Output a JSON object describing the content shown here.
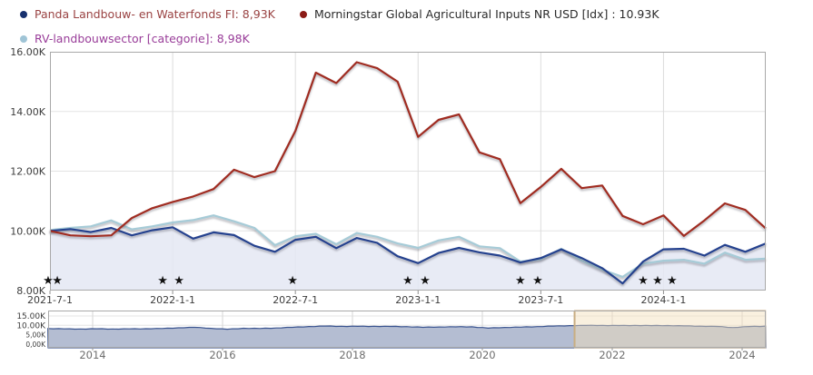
{
  "page": {
    "background": "#ffffff"
  },
  "legend": {
    "items": [
      {
        "id": "panda-fund",
        "label": "Panda Landbouw- en Waterfonds FI: 8,93K",
        "bullet_color": "#16306e",
        "text_color": "#9a4343"
      },
      {
        "id": "morningstar-index",
        "label": "Morningstar Global Agricultural Inputs NR USD [Idx] : 10.93K",
        "bullet_color": "#8b1a15",
        "text_color": "#2b2b2b"
      },
      {
        "id": "category",
        "label": "RV-landbouwsector [categorie]: 8,98K",
        "bullet_color": "#9fc4d6",
        "text_color": "#993d99"
      }
    ]
  },
  "chart_data": [
    {
      "type": "line",
      "title": "",
      "xlabel": "",
      "ylabel": "",
      "ylim": [
        8,
        16
      ],
      "grid": true,
      "legend_position": "top",
      "x": [
        "2021-07",
        "2021-08",
        "2021-09",
        "2021-10",
        "2021-11",
        "2021-12",
        "2022-01",
        "2022-02",
        "2022-03",
        "2022-04",
        "2022-05",
        "2022-06",
        "2022-07",
        "2022-08",
        "2022-09",
        "2022-10",
        "2022-11",
        "2022-12",
        "2023-01",
        "2023-02",
        "2023-03",
        "2023-04",
        "2023-05",
        "2023-06",
        "2023-07",
        "2023-08",
        "2023-09",
        "2023-10",
        "2023-11",
        "2023-12",
        "2024-01",
        "2024-02",
        "2024-03",
        "2024-04",
        "2024-05",
        "2024-06"
      ],
      "series": [
        {
          "name": "Panda Landbouw- en Waterfonds FI",
          "color": "#24418e",
          "area_fill": "#e4e8f3",
          "values": [
            10.0,
            10.06,
            9.96,
            10.1,
            9.85,
            10.02,
            10.12,
            9.74,
            9.95,
            9.86,
            9.5,
            9.3,
            9.7,
            9.8,
            9.42,
            9.76,
            9.6,
            9.15,
            8.92,
            9.26,
            9.43,
            9.28,
            9.17,
            8.94,
            9.09,
            9.38,
            9.09,
            8.75,
            8.24,
            8.97,
            9.38,
            9.4,
            9.17,
            9.53,
            9.3,
            9.58
          ]
        },
        {
          "name": "Morningstar Global Agricultural Inputs NR USD [Idx]",
          "color": "#a02c21",
          "values": [
            10.0,
            9.85,
            9.82,
            9.85,
            10.43,
            10.76,
            10.97,
            11.15,
            11.4,
            12.05,
            11.8,
            12.0,
            13.35,
            15.3,
            14.95,
            15.65,
            15.45,
            15.0,
            13.15,
            13.72,
            13.9,
            12.63,
            12.4,
            10.93,
            11.47,
            12.08,
            11.43,
            11.52,
            10.5,
            10.22,
            10.52,
            9.83,
            10.35,
            10.92,
            10.7,
            10.08
          ]
        },
        {
          "name": "RV-landbouwsector [categorie]",
          "color": "#a6cbd7",
          "values": [
            10.03,
            10.1,
            10.15,
            10.35,
            10.05,
            10.15,
            10.28,
            10.36,
            10.52,
            10.32,
            10.1,
            9.52,
            9.82,
            9.9,
            9.55,
            9.93,
            9.8,
            9.58,
            9.43,
            9.68,
            9.8,
            9.48,
            9.42,
            8.97,
            9.05,
            9.4,
            9.0,
            8.7,
            8.46,
            8.9,
            9.0,
            9.03,
            8.9,
            9.27,
            9.03,
            9.07
          ]
        }
      ],
      "yticks": [
        {
          "value": 16,
          "label": "16.00K"
        },
        {
          "value": 14,
          "label": "14.00K"
        },
        {
          "value": 12,
          "label": "12.00K"
        },
        {
          "value": 10,
          "label": "10.00K"
        },
        {
          "value": 8,
          "label": "8.00K"
        }
      ],
      "xticks": [
        {
          "month_index": 0,
          "label": "2021-7-1"
        },
        {
          "month_index": 6,
          "label": "2022-1-1"
        },
        {
          "month_index": 12,
          "label": "2022-7-1"
        },
        {
          "month_index": 18,
          "label": "2023-1-1"
        },
        {
          "month_index": 24,
          "label": "2023-7-1"
        },
        {
          "month_index": 30,
          "label": "2024-1-1"
        }
      ],
      "event_stars": {
        "symbol": "★",
        "color": "#111111",
        "month_offsets": [
          -0.09,
          0.36,
          5.51,
          6.31,
          11.86,
          17.5,
          18.34,
          23.0,
          23.85,
          29.0,
          29.71,
          30.42
        ]
      }
    },
    {
      "type": "area",
      "name": "timeline-navigator",
      "line_color": "#3a5490",
      "fill_color": "#b4bdd2",
      "x_start": 2013.31,
      "x_end": 2024.36,
      "values": [
        8.3,
        8.1,
        8.05,
        8.15,
        8.05,
        8.1,
        8.2,
        8.3,
        8.7,
        8.95,
        8.4,
        7.9,
        8.45,
        8.3,
        8.6,
        8.95,
        9.35,
        9.6,
        9.5,
        9.45,
        9.5,
        9.4,
        9.3,
        8.95,
        9.15,
        9.2,
        9.25,
        8.5,
        8.9,
        9.05,
        9.3,
        9.6,
        9.85,
        9.95,
        10.0,
        9.9,
        10.0,
        9.85,
        9.9,
        9.7,
        9.55,
        9.4,
        8.85,
        9.35,
        9.55
      ],
      "ylim": [
        0,
        15
      ],
      "yticks": [
        {
          "value": 15,
          "label": "15.00K",
          "size": 9
        },
        {
          "value": 10,
          "label": "10.00K",
          "size": 9
        },
        {
          "value": 5,
          "label": "5,00K",
          "size": 7.5
        },
        {
          "value": 0,
          "label": "0,00K",
          "size": 7.5
        }
      ],
      "xticks": [
        {
          "year": 2014,
          "label": "2014"
        },
        {
          "year": 2016,
          "label": "2016"
        },
        {
          "year": 2018,
          "label": "2018"
        },
        {
          "year": 2020,
          "label": "2020"
        },
        {
          "year": 2022,
          "label": "2022"
        },
        {
          "year": 2024,
          "label": "2024"
        }
      ],
      "selected_range": {
        "from": 2021.42,
        "to": 2024.36,
        "fill": "rgba(242,222,183,0.45)",
        "border": "#c9ae82"
      }
    }
  ]
}
